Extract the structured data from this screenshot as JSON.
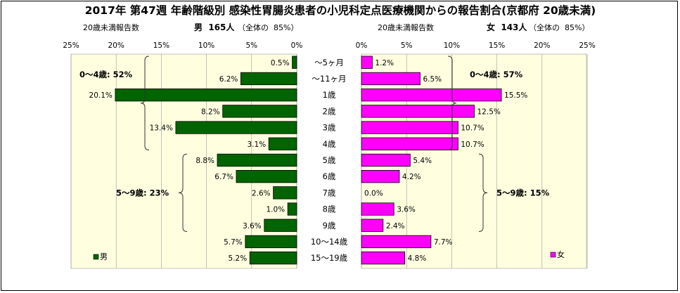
{
  "chart_data": {
    "type": "bar",
    "title": "2017年 第47週 年齢階級別 感染性胃腸炎患者の小児科定点医療機関からの報告割合(京都府 20歳未満)",
    "categories": [
      "～5ヶ月",
      "～11ヶ月",
      "1歳",
      "2歳",
      "3歳",
      "4歳",
      "5歳",
      "6歳",
      "7歳",
      "8歳",
      "9歳",
      "10～14歳",
      "15～19歳"
    ],
    "left": {
      "subtitle_prefix": "20歳未満報告数",
      "subtitle_main": "男  165人",
      "subtitle_suffix": "（全体の  85%）",
      "legend": "男",
      "color": "#006400",
      "unit": "%",
      "values": [
        0.5,
        6.2,
        20.1,
        8.2,
        13.4,
        3.1,
        8.8,
        6.7,
        2.6,
        1.0,
        3.6,
        5.7,
        5.2
      ],
      "value_labels": [
        "0.5%",
        "6.2%",
        "20.1%",
        "8.2%",
        "13.4%",
        "3.1%",
        "8.8%",
        "6.7%",
        "2.6%",
        "1.0%",
        "3.6%",
        "5.7%",
        "5.2%"
      ],
      "ticks": [
        "25%",
        "20%",
        "15%",
        "10%",
        "5%",
        "0%"
      ],
      "tick_values": [
        25,
        20,
        15,
        10,
        5,
        0
      ],
      "groups": [
        {
          "label": "0～4歳: 52%",
          "start": 0,
          "end": 5
        },
        {
          "label": "5～9歳: 23%",
          "start": 6,
          "end": 10
        }
      ]
    },
    "right": {
      "subtitle_prefix": "20歳未満報告数",
      "subtitle_main": "女  143人",
      "subtitle_suffix": "（全体の  85%）",
      "legend": "女",
      "color": "#FF00FF",
      "unit": "%",
      "values": [
        1.2,
        6.5,
        15.5,
        12.5,
        10.7,
        10.7,
        5.4,
        4.2,
        0.0,
        3.6,
        2.4,
        7.7,
        4.8
      ],
      "value_labels": [
        "1.2%",
        "6.5%",
        "15.5%",
        "12.5%",
        "10.7%",
        "10.7%",
        "5.4%",
        "4.2%",
        "0.0%",
        "3.6%",
        "2.4%",
        "7.7%",
        "4.8%"
      ],
      "ticks": [
        "0%",
        "5%",
        "10%",
        "15%",
        "20%",
        "25%"
      ],
      "tick_values": [
        0,
        5,
        10,
        15,
        20,
        25
      ],
      "groups": [
        {
          "label": "0～4歳: 57%",
          "start": 0,
          "end": 5
        },
        {
          "label": "5～9歳: 15%",
          "start": 6,
          "end": 10
        }
      ]
    },
    "xlim": [
      0,
      25
    ],
    "plot_bg": "#FFFFE0",
    "grid": true
  }
}
